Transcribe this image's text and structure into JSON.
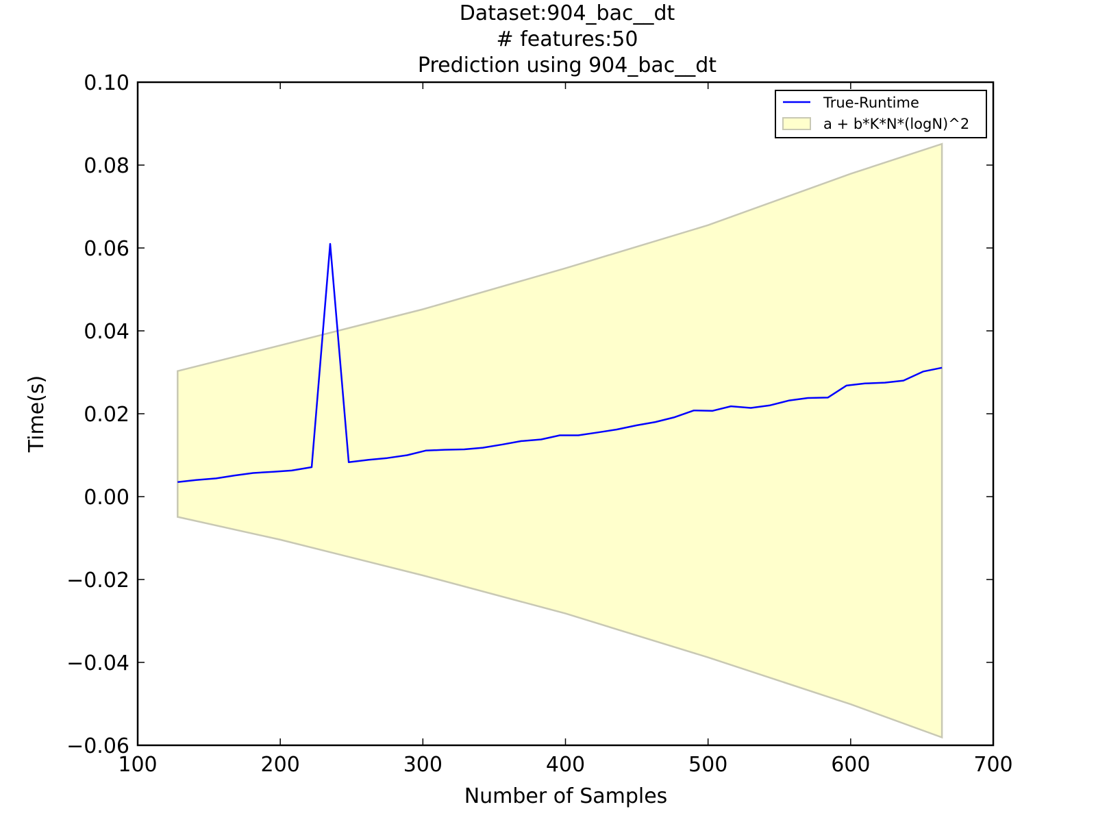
{
  "chart_data": {
    "type": "line",
    "title_lines": [
      "Dataset:904_bac__dt",
      "# features:50",
      "Prediction using 904_bac__dt"
    ],
    "xlabel": "Number of Samples",
    "ylabel": "Time(s)",
    "xlim": [
      100,
      700
    ],
    "ylim": [
      -0.06,
      0.1
    ],
    "xticks": [
      100,
      200,
      300,
      400,
      500,
      600,
      700
    ],
    "xtick_labels": [
      "100",
      "200",
      "300",
      "400",
      "500",
      "600",
      "700"
    ],
    "yticks": [
      -0.06,
      -0.04,
      -0.02,
      0.0,
      0.02,
      0.04,
      0.06,
      0.08,
      0.1
    ],
    "ytick_labels": [
      "−0.06",
      "−0.04",
      "−0.02",
      "0.00",
      "0.02",
      "0.04",
      "0.06",
      "0.08",
      "0.10"
    ],
    "grid": false,
    "legend_position": "top-right",
    "legend": [
      {
        "label": "True-Runtime",
        "kind": "line",
        "color": "#0000ff"
      },
      {
        "label": "a + b*K*N*(logN)^2",
        "kind": "fill",
        "color": "#ffffcc",
        "edge": "#c8c8b4"
      }
    ],
    "series": [
      {
        "name": "True-Runtime",
        "color": "#0000ff",
        "x": [
          128,
          141,
          155,
          168,
          181,
          195,
          208,
          222,
          235,
          248,
          262,
          275,
          289,
          302,
          315,
          329,
          342,
          356,
          369,
          383,
          396,
          409,
          423,
          436,
          450,
          463,
          476,
          490,
          503,
          516,
          530,
          543,
          557,
          570,
          584,
          597,
          610,
          624,
          637,
          651,
          664
        ],
        "y": [
          0.0035,
          0.004,
          0.0044,
          0.0051,
          0.0057,
          0.006,
          0.0063,
          0.0071,
          0.061,
          0.0083,
          0.0089,
          0.0093,
          0.01,
          0.0111,
          0.0113,
          0.0114,
          0.0118,
          0.0126,
          0.0134,
          0.0138,
          0.0148,
          0.0148,
          0.0155,
          0.0162,
          0.0172,
          0.018,
          0.0191,
          0.0208,
          0.0207,
          0.0218,
          0.0214,
          0.022,
          0.0232,
          0.0238,
          0.0239,
          0.0268,
          0.0273,
          0.0275,
          0.028,
          0.0302,
          0.0311
        ]
      }
    ],
    "band": {
      "name": "a + b*K*N*(logN)^2",
      "color": "#ffffcc",
      "edge_color": "#c8c8b4",
      "x": [
        128,
        200,
        300,
        400,
        500,
        600,
        664
      ],
      "upper": [
        0.0303,
        0.0365,
        0.0452,
        0.0551,
        0.0655,
        0.0779,
        0.0851
      ],
      "lower": [
        -0.0049,
        -0.0104,
        -0.019,
        -0.0282,
        -0.0388,
        -0.0501,
        -0.0581
      ]
    }
  }
}
